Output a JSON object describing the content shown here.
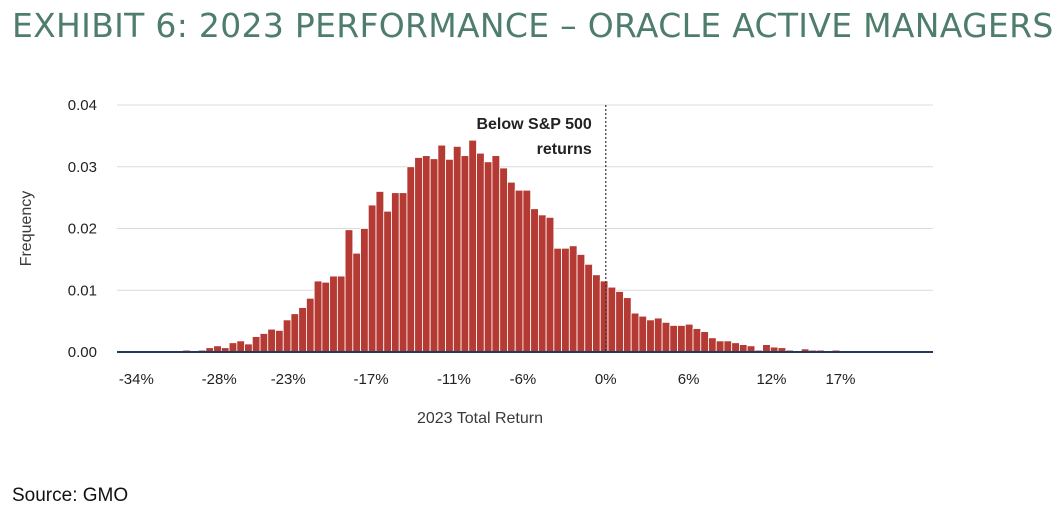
{
  "title": "EXHIBIT 6: 2023 PERFORMANCE – ORACLE ACTIVE MANAGERS",
  "source": "Source: GMO",
  "colors": {
    "title": "#4e7d6c",
    "bar": "#b53a33",
    "bar_edge": "#ffffff",
    "baseline": "#1f3a5a",
    "grid": "#dcdcdc"
  },
  "chart_data": {
    "type": "bar",
    "title": "",
    "xlabel": "2023 Total Return",
    "ylabel": "Frequency",
    "ylim": [
      0,
      0.04
    ],
    "xlim": [
      -35.4,
      23.7
    ],
    "grid": true,
    "yticks": [
      {
        "value": 0.0,
        "label": "0.00"
      },
      {
        "value": 0.01,
        "label": "0.01"
      },
      {
        "value": 0.02,
        "label": "0.02"
      },
      {
        "value": 0.03,
        "label": "0.03"
      },
      {
        "value": 0.04,
        "label": "0.04"
      }
    ],
    "xticks": [
      {
        "value": -34,
        "label": "-34%"
      },
      {
        "value": -28,
        "label": "-28%"
      },
      {
        "value": -23,
        "label": "-23%"
      },
      {
        "value": -17,
        "label": "-17%"
      },
      {
        "value": -11,
        "label": "-11%"
      },
      {
        "value": -6,
        "label": "-6%"
      },
      {
        "value": 0,
        "label": "0%"
      },
      {
        "value": 6,
        "label": "6%"
      },
      {
        "value": 12,
        "label": "12%"
      },
      {
        "value": 17,
        "label": "17%"
      }
    ],
    "bin_width": 0.56,
    "x": [
      -34.0,
      -33.44,
      -32.88,
      -32.32,
      -31.76,
      -31.2,
      -30.64,
      -30.08,
      -29.52,
      -28.96,
      -28.4,
      -27.84,
      -27.28,
      -26.72,
      -26.16,
      -25.6,
      -25.04,
      -24.48,
      -23.92,
      -23.36,
      -22.8,
      -22.24,
      -21.68,
      -21.12,
      -20.56,
      -20.0,
      -19.44,
      -18.88,
      -18.32,
      -17.76,
      -17.2,
      -16.64,
      -16.08,
      -15.52,
      -14.96,
      -14.4,
      -13.84,
      -13.28,
      -12.72,
      -12.16,
      -11.6,
      -11.04,
      -10.48,
      -9.92,
      -9.36,
      -8.8,
      -8.24,
      -7.68,
      -7.12,
      -6.56,
      -6.0,
      -5.44,
      -4.88,
      -4.32,
      -3.76,
      -3.2,
      -2.64,
      -2.08,
      -1.52,
      -0.96,
      -0.4,
      0.16,
      0.72,
      1.28,
      1.84,
      2.4,
      2.96,
      3.52,
      4.08,
      4.64,
      5.2,
      5.76,
      6.32,
      6.88,
      7.44,
      8.0,
      8.56,
      9.12,
      9.68,
      10.24,
      10.8,
      11.36,
      11.92,
      12.48,
      13.04,
      13.6,
      14.16,
      14.72,
      15.28,
      15.84,
      16.4,
      16.96,
      17.52,
      18.08,
      18.64,
      19.2,
      19.76,
      20.32,
      20.88,
      21.44,
      22.0,
      22.56
    ],
    "values": [
      0.0,
      0.0,
      0.0,
      0.0002,
      0.0002,
      0.0,
      0.0003,
      0.0,
      0.0003,
      0.0007,
      0.001,
      0.0007,
      0.0015,
      0.0018,
      0.0013,
      0.0025,
      0.003,
      0.0037,
      0.0035,
      0.0052,
      0.0062,
      0.0072,
      0.0087,
      0.0115,
      0.0113,
      0.0123,
      0.0123,
      0.0198,
      0.016,
      0.02,
      0.0238,
      0.026,
      0.0228,
      0.0258,
      0.0258,
      0.03,
      0.0315,
      0.0318,
      0.0313,
      0.0335,
      0.0312,
      0.0333,
      0.0318,
      0.0343,
      0.0322,
      0.0308,
      0.0318,
      0.0298,
      0.0275,
      0.0262,
      0.0262,
      0.0232,
      0.0222,
      0.0218,
      0.0168,
      0.0168,
      0.0172,
      0.0158,
      0.0142,
      0.0125,
      0.0115,
      0.0105,
      0.0098,
      0.0088,
      0.0063,
      0.0058,
      0.0052,
      0.0055,
      0.0048,
      0.0043,
      0.0043,
      0.0045,
      0.0038,
      0.0033,
      0.0023,
      0.0018,
      0.0018,
      0.0015,
      0.0012,
      0.001,
      0.0003,
      0.0012,
      0.0008,
      0.0007,
      0.0003,
      0.0002,
      0.0005,
      0.0003,
      0.0003,
      0.0,
      0.0003,
      0.0,
      0.0,
      0.0,
      0.0,
      0.0,
      0.0,
      0.0,
      0.0,
      0.0,
      0.0,
      0.0
    ],
    "reference_line": {
      "x": 0,
      "style": "dotted"
    },
    "annotation": {
      "lines": [
        "Below S&P 500",
        "returns"
      ],
      "x": 0
    }
  }
}
